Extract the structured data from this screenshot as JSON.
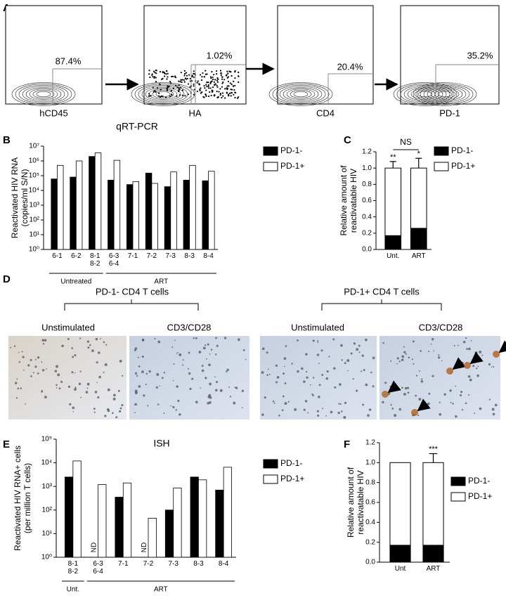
{
  "panels": [
    "A",
    "B",
    "C",
    "D",
    "E",
    "F"
  ],
  "flow_panels": [
    {
      "x_label": "hCD45",
      "percent": "87.4%"
    },
    {
      "x_label": "HA",
      "percent": "1.02%"
    },
    {
      "x_label": "CD4",
      "percent": "20.4%"
    },
    {
      "x_label": "PD-1",
      "percent": "35.2%"
    }
  ],
  "micrographs": {
    "groups": [
      "PD-1- CD4 T cells",
      "PD-1+ CD4 T cells"
    ],
    "conditions": [
      "Unstimulated",
      "CD3/CD28",
      "Unstimulated",
      "CD3/CD28"
    ]
  },
  "chart_data": [
    {
      "type": "bar",
      "title": "qRT-PCR",
      "y_label": [
        "Reactivated HIV RNA",
        "(copies/ml S/N)"
      ],
      "categories": [
        "6-1",
        "6-2",
        "8-1\n8-2",
        "6-3\n6-4",
        "7-1",
        "7-2",
        "7-3",
        "8-3",
        "8-4"
      ],
      "groups": [
        {
          "label": "Untreated",
          "span": 3
        },
        {
          "label": "ART",
          "span": 6
        }
      ],
      "series": [
        {
          "name": "PD-1-",
          "color": "#000000",
          "values": [
            60000,
            80000,
            2000000,
            50000,
            25000,
            150000,
            18000,
            50000,
            45000
          ]
        },
        {
          "name": "PD-1+",
          "color": "#ffffff",
          "values": [
            500000,
            1000000,
            3500000,
            1100000,
            40000,
            30000,
            180000,
            500000,
            200000
          ]
        }
      ],
      "ylim": [
        1,
        10000000
      ],
      "log_scale": true,
      "yticks": [
        {
          "value": 1,
          "label": "10⁰"
        },
        {
          "value": 10,
          "label": "10¹"
        },
        {
          "value": 100,
          "label": "10²"
        },
        {
          "value": 1000,
          "label": "10³"
        },
        {
          "value": 10000,
          "label": "10⁴"
        },
        {
          "value": 100000,
          "label": "10⁵"
        },
        {
          "value": 1000000,
          "label": "10⁶"
        },
        {
          "value": 10000000,
          "label": "10⁷"
        }
      ],
      "legend": "right"
    },
    {
      "type": "stacked_bar",
      "y_label": [
        "Relative amount of",
        "reactivatable HIV"
      ],
      "categories": [
        "Unt.",
        "ART"
      ],
      "series": [
        {
          "name": "PD-1-",
          "color": "#000000",
          "values": [
            0.17,
            0.26
          ],
          "errors": [
            0.09,
            0.13
          ]
        },
        {
          "name": "PD-1+",
          "color": "#ffffff",
          "values": [
            0.83,
            0.74
          ],
          "errors": [
            0.08,
            0.12
          ]
        }
      ],
      "value_annotations": [
        "**",
        "*"
      ],
      "comparison": "NS",
      "ylim": [
        0,
        1.2
      ],
      "yticks": [
        {
          "value": 0,
          "label": "0.0"
        },
        {
          "value": 0.2,
          "label": "0.2"
        },
        {
          "value": 0.4,
          "label": "0.4"
        },
        {
          "value": 0.6,
          "label": "0.6"
        },
        {
          "value": 0.8,
          "label": "0.8"
        },
        {
          "value": 1,
          "label": "1.0"
        },
        {
          "value": 1.2,
          "label": "1.2"
        }
      ],
      "legend": "right"
    },
    {
      "type": "bar",
      "title": "ISH",
      "y_label": [
        "Reactivated HIV RNA+ cells",
        "(per million T cells)"
      ],
      "categories": [
        "8-1\n8-2",
        "6-3\n6-4",
        "7-1",
        "7-2",
        "7-3",
        "8-3",
        "8-4"
      ],
      "groups": [
        {
          "label": "Unt.",
          "span": 1
        },
        {
          "label": "ART",
          "span": 6
        }
      ],
      "series": [
        {
          "name": "PD-1-",
          "color": "#000000",
          "values": [
            2500,
            null,
            350,
            null,
            100,
            2500,
            700
          ],
          "value_labels": [
            null,
            "ND",
            null,
            "ND",
            null,
            null,
            null
          ]
        },
        {
          "name": "PD-1+",
          "color": "#ffffff",
          "values": [
            12000,
            1200,
            1400,
            45,
            850,
            1900,
            6500
          ]
        }
      ],
      "ylim": [
        1,
        100000
      ],
      "log_scale": true,
      "yticks": [
        {
          "value": 1,
          "label": "10⁰"
        },
        {
          "value": 10,
          "label": "10¹"
        },
        {
          "value": 100,
          "label": "10²"
        },
        {
          "value": 1000,
          "label": "10³"
        },
        {
          "value": 10000,
          "label": "10⁴"
        },
        {
          "value": 100000,
          "label": "10⁵"
        }
      ],
      "legend": "right"
    },
    {
      "type": "stacked_bar",
      "y_label": [
        "Relative amount of",
        "reactivatable HIV"
      ],
      "categories": [
        "Unt",
        "ART"
      ],
      "series": [
        {
          "name": "PD-1-",
          "color": "#000000",
          "values": [
            0.17,
            0.17
          ],
          "errors": [
            null,
            0.09
          ]
        },
        {
          "name": "PD-1+",
          "color": "#ffffff",
          "values": [
            0.83,
            0.83
          ],
          "errors": [
            null,
            0.09
          ]
        }
      ],
      "value_annotations": [
        null,
        "***"
      ],
      "ylim": [
        0,
        1.2
      ],
      "yticks": [
        {
          "value": 0,
          "label": "0.0"
        },
        {
          "value": 0.2,
          "label": "0.2"
        },
        {
          "value": 0.4,
          "label": "0.4"
        },
        {
          "value": 0.6,
          "label": "0.6"
        },
        {
          "value": 0.8,
          "label": "0.8"
        },
        {
          "value": 1,
          "label": "1.0"
        },
        {
          "value": 1.2,
          "label": "1.2"
        }
      ],
      "legend": "right"
    }
  ]
}
